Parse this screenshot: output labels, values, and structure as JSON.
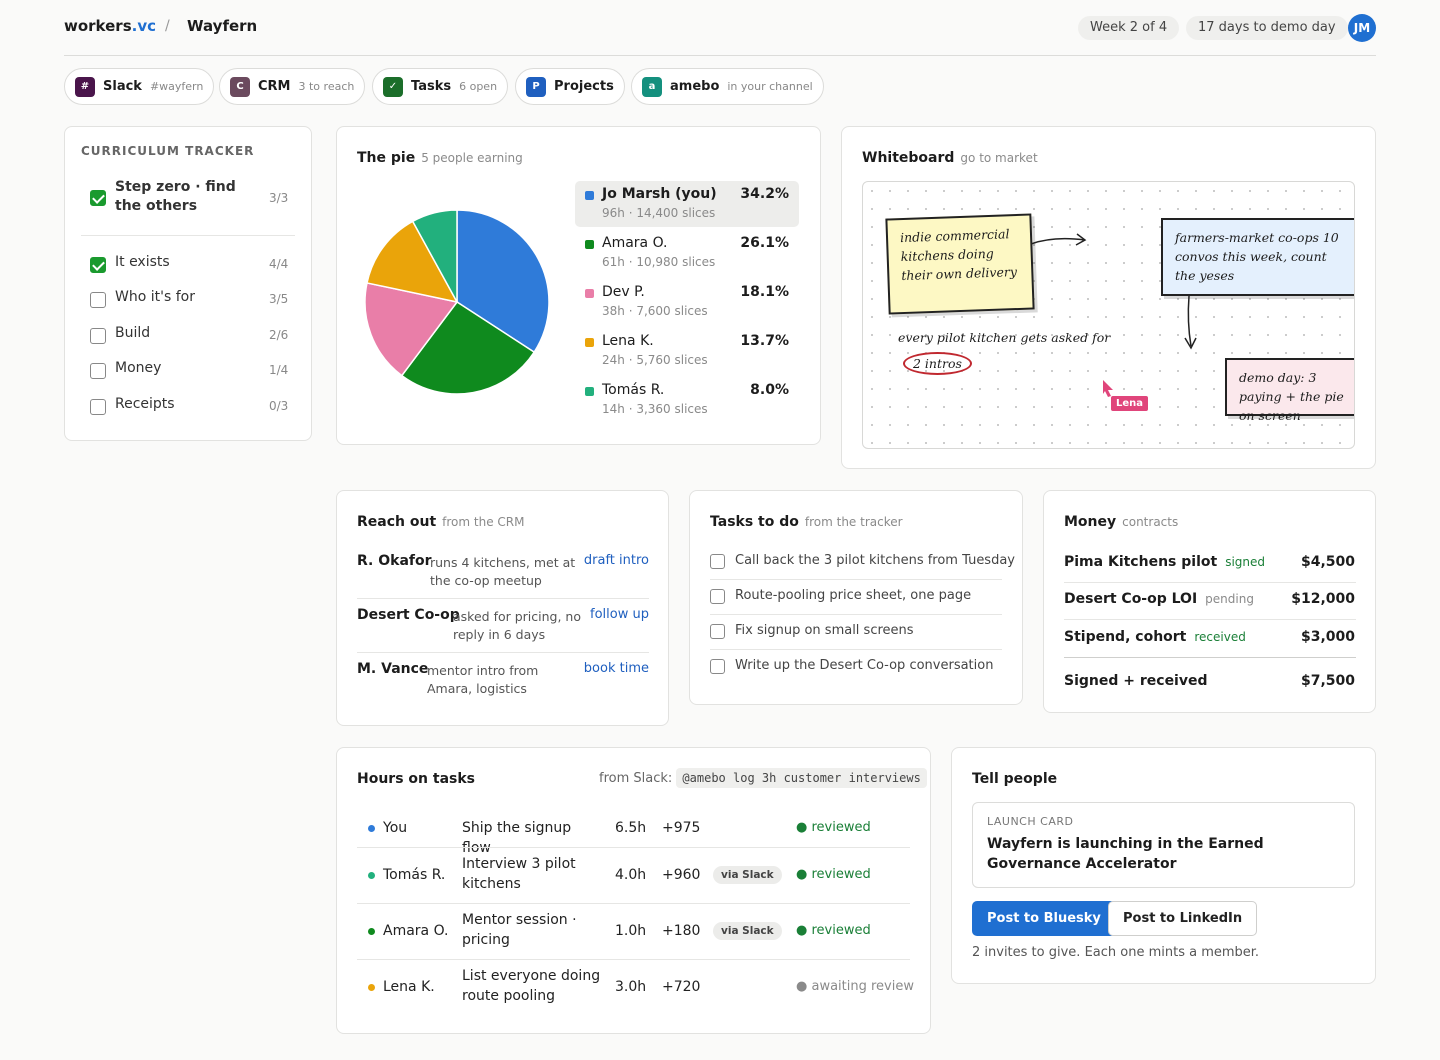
{
  "header": {
    "brand_main": "workers",
    "brand_suffix": ".vc",
    "separator": "/",
    "project": "Wayfern",
    "week_pill": "Week 2 of 4",
    "demo_pill": "17 days to demo day",
    "avatar_initials": "JM",
    "accent": "#1f6fd1"
  },
  "tools": [
    {
      "icon": "#",
      "name": "Slack",
      "sub": "#wayfern",
      "color": "#4a154b"
    },
    {
      "icon": "C",
      "name": "CRM",
      "sub": "3 to reach",
      "color": "#6b4a5e"
    },
    {
      "icon": "✓",
      "name": "Tasks",
      "sub": "6 open",
      "color": "#1b6e2a"
    },
    {
      "icon": "P",
      "name": "Projects",
      "sub": "",
      "color": "#1f5fbf"
    },
    {
      "icon": "a",
      "name": "amebo",
      "sub": "in your channel",
      "color": "#14907e"
    }
  ],
  "curriculum": {
    "title": "CURRICULUM TRACKER",
    "items": [
      {
        "label": "Step zero · find the others",
        "count": "3/3",
        "done": true
      },
      {
        "label": "It exists",
        "count": "4/4",
        "done": true
      },
      {
        "label": "Who it's for",
        "count": "3/5",
        "done": false
      },
      {
        "label": "Build",
        "count": "2/6",
        "done": false
      },
      {
        "label": "Money",
        "count": "1/4",
        "done": false
      },
      {
        "label": "Receipts",
        "count": "0/3",
        "done": false
      }
    ]
  },
  "pie": {
    "title": "The pie",
    "subtitle": "5 people earning",
    "people": [
      {
        "name": "Jo Marsh (you)",
        "meta": "96h · 14,400 slices",
        "pct": "34.2%",
        "value": 34.2,
        "color": "#2f7bd9",
        "selected": true
      },
      {
        "name": "Amara O.",
        "meta": "61h · 10,980 slices",
        "pct": "26.1%",
        "value": 26.1,
        "color": "#0f8a1e",
        "selected": false
      },
      {
        "name": "Dev P.",
        "meta": "38h · 7,600 slices",
        "pct": "18.1%",
        "value": 18.1,
        "color": "#e97ea8",
        "selected": false
      },
      {
        "name": "Lena K.",
        "meta": "24h · 5,760 slices",
        "pct": "13.7%",
        "value": 13.7,
        "color": "#eaa40a",
        "selected": false
      },
      {
        "name": "Tomás R.",
        "meta": "14h · 3,360 slices",
        "pct": "8.0%",
        "value": 8.0,
        "color": "#22b07d",
        "selected": false
      }
    ]
  },
  "whiteboard": {
    "title": "Whiteboard",
    "subtitle": "go to market",
    "note1": "indie commercial kitchens doing their own delivery",
    "note2": "farmers-market co-ops 10 convos this week, count the yeses",
    "note3": "demo day: 3 paying + the pie on screen",
    "scribble": "every pilot kitchen gets asked for",
    "circled": "2 intros",
    "cursor_user": "Lena"
  },
  "reach_out": {
    "title": "Reach out",
    "subtitle": "from the CRM",
    "rows": [
      {
        "name": "R. Okafor",
        "desc": "runs 4 kitchens, met at the co-op meetup",
        "action": "draft intro"
      },
      {
        "name": "Desert Co-op",
        "desc": "asked for pricing, no reply in 6 days",
        "action": "follow up"
      },
      {
        "name": "M. Vance",
        "desc": "mentor intro from Amara, logistics",
        "action": "book time"
      }
    ]
  },
  "tasks": {
    "title": "Tasks to do",
    "subtitle": "from the tracker",
    "items": [
      "Call back the 3 pilot kitchens from Tuesday",
      "Route-pooling price sheet, one page",
      "Fix signup on small screens",
      "Write up the Desert Co-op conversation"
    ]
  },
  "money": {
    "title": "Money",
    "subtitle": "contracts",
    "rows": [
      {
        "name": "Pima Kitchens pilot",
        "status": "signed",
        "amount": "$4,500"
      },
      {
        "name": "Desert Co-op LOI",
        "status": "pending",
        "amount": "$12,000"
      },
      {
        "name": "Stipend, cohort",
        "status": "received",
        "amount": "$3,000"
      }
    ],
    "total_label": "Signed + received",
    "total_amount": "$7,500"
  },
  "hours": {
    "title": "Hours on tasks",
    "from_label": "from Slack:",
    "command": "@amebo log 3h customer interviews",
    "rows": [
      {
        "who": "You",
        "task": "Ship the signup flow",
        "hours": "6.5h",
        "slices": "+975",
        "via": "",
        "status": "● reviewed",
        "color": "#2f7bd9"
      },
      {
        "who": "Tomás R.",
        "task": "Interview 3 pilot kitchens",
        "hours": "4.0h",
        "slices": "+960",
        "via": "via Slack",
        "status": "● reviewed",
        "color": "#22b07d"
      },
      {
        "who": "Amara O.",
        "task": "Mentor session · pricing",
        "hours": "1.0h",
        "slices": "+180",
        "via": "via Slack",
        "status": "● reviewed",
        "color": "#0f8a1e"
      },
      {
        "who": "Lena K.",
        "task": "List everyone doing route pooling",
        "hours": "3.0h",
        "slices": "+720",
        "via": "",
        "status": "● awaiting review",
        "color": "#eaa40a"
      }
    ]
  },
  "tell": {
    "title": "Tell people",
    "card_label": "LAUNCH CARD",
    "card_text": "Wayfern is launching in the Earned Governance Accelerator",
    "btn_bluesky": "Post to Bluesky",
    "btn_linkedin": "Post to LinkedIn",
    "invites": "2 invites to give. Each one mints a member."
  }
}
